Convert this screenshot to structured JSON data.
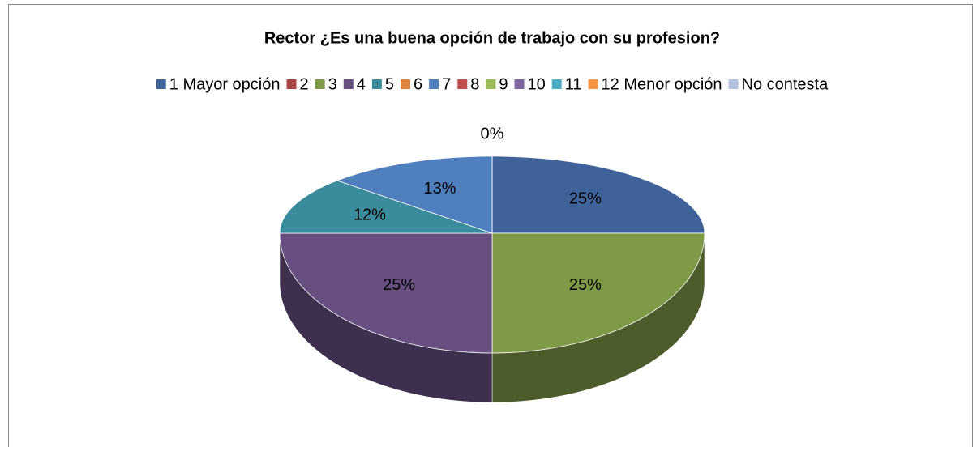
{
  "chart_data": {
    "type": "pie3d",
    "title": "Rector ¿Es una buena opción de trabajo con su profesion?",
    "categories": [
      "1 Mayor opción",
      "2",
      "3",
      "4",
      "5",
      "6",
      "7",
      "8",
      "9",
      "10",
      "11",
      "12 Menor opción",
      "No contesta"
    ],
    "values": [
      25,
      0,
      25,
      25,
      12,
      0,
      13,
      0,
      0,
      0,
      0,
      0,
      0
    ],
    "value_labels": [
      "25%",
      null,
      "25%",
      "25%",
      "12%",
      null,
      "13%",
      null,
      null,
      null,
      null,
      null,
      "0%"
    ],
    "colors": [
      "#3f6398",
      "#a94442",
      "#7e9a46",
      "#684f82",
      "#3a8c9d",
      "#dc823a",
      "#4f7fbf",
      "#c0504d",
      "#9bbb59",
      "#8064a2",
      "#4bacc6",
      "#f79646",
      "#b3c3dd"
    ],
    "legend": "top"
  }
}
